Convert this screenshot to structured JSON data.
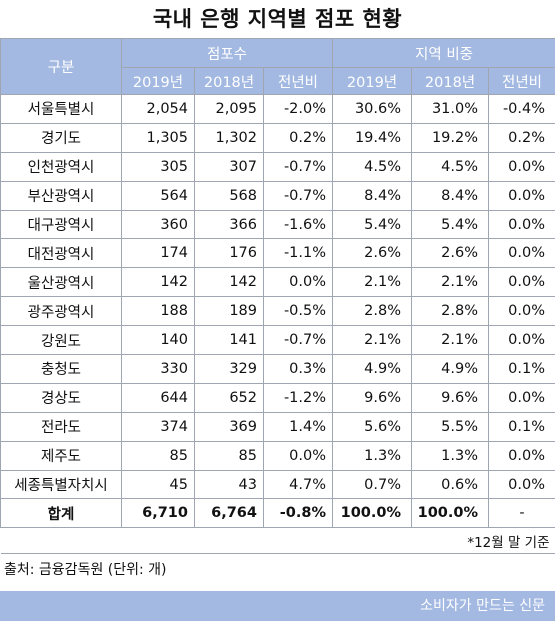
{
  "title": "국내 은행 지역별 점포 현황",
  "header": {
    "category": "구분",
    "group_branches": "점포수",
    "group_share": "지역 비중",
    "y2019": "2019년",
    "y2018": "2018년",
    "yoy": "전년비"
  },
  "rows": [
    {
      "region": "서울특별시",
      "b2019": "2,054",
      "b2018": "2,095",
      "b_yoy": "-2.0%",
      "s2019": "30.6%",
      "s2018": "31.0%",
      "s_yoy": "-0.4%"
    },
    {
      "region": "경기도",
      "b2019": "1,305",
      "b2018": "1,302",
      "b_yoy": "0.2%",
      "s2019": "19.4%",
      "s2018": "19.2%",
      "s_yoy": "0.2%"
    },
    {
      "region": "인천광역시",
      "b2019": "305",
      "b2018": "307",
      "b_yoy": "-0.7%",
      "s2019": "4.5%",
      "s2018": "4.5%",
      "s_yoy": "0.0%"
    },
    {
      "region": "부산광역시",
      "b2019": "564",
      "b2018": "568",
      "b_yoy": "-0.7%",
      "s2019": "8.4%",
      "s2018": "8.4%",
      "s_yoy": "0.0%"
    },
    {
      "region": "대구광역시",
      "b2019": "360",
      "b2018": "366",
      "b_yoy": "-1.6%",
      "s2019": "5.4%",
      "s2018": "5.4%",
      "s_yoy": "0.0%"
    },
    {
      "region": "대전광역시",
      "b2019": "174",
      "b2018": "176",
      "b_yoy": "-1.1%",
      "s2019": "2.6%",
      "s2018": "2.6%",
      "s_yoy": "0.0%"
    },
    {
      "region": "울산광역시",
      "b2019": "142",
      "b2018": "142",
      "b_yoy": "0.0%",
      "s2019": "2.1%",
      "s2018": "2.1%",
      "s_yoy": "0.0%"
    },
    {
      "region": "광주광역시",
      "b2019": "188",
      "b2018": "189",
      "b_yoy": "-0.5%",
      "s2019": "2.8%",
      "s2018": "2.8%",
      "s_yoy": "0.0%"
    },
    {
      "region": "강원도",
      "b2019": "140",
      "b2018": "141",
      "b_yoy": "-0.7%",
      "s2019": "2.1%",
      "s2018": "2.1%",
      "s_yoy": "0.0%"
    },
    {
      "region": "충청도",
      "b2019": "330",
      "b2018": "329",
      "b_yoy": "0.3%",
      "s2019": "4.9%",
      "s2018": "4.9%",
      "s_yoy": "0.1%"
    },
    {
      "region": "경상도",
      "b2019": "644",
      "b2018": "652",
      "b_yoy": "-1.2%",
      "s2019": "9.6%",
      "s2018": "9.6%",
      "s_yoy": "0.0%"
    },
    {
      "region": "전라도",
      "b2019": "374",
      "b2018": "369",
      "b_yoy": "1.4%",
      "s2019": "5.6%",
      "s2018": "5.5%",
      "s_yoy": "0.1%"
    },
    {
      "region": "제주도",
      "b2019": "85",
      "b2018": "85",
      "b_yoy": "0.0%",
      "s2019": "1.3%",
      "s2018": "1.3%",
      "s_yoy": "0.0%"
    },
    {
      "region": "세종특별자치시",
      "b2019": "45",
      "b2018": "43",
      "b_yoy": "4.7%",
      "s2019": "0.7%",
      "s2018": "0.6%",
      "s_yoy": "0.0%"
    }
  ],
  "total": {
    "region": "합계",
    "b2019": "6,710",
    "b2018": "6,764",
    "b_yoy": "-0.8%",
    "s2019": "100.0%",
    "s2018": "100.0%",
    "s_yoy": "-"
  },
  "note": "*12월 말 기준",
  "source": "출처: 금융감독원 (단위: 개)",
  "footer": "소비자가 만드는 신문",
  "colors": {
    "header_bg": "#a3b9e2",
    "header_text": "#ffffff",
    "border": "#9fa6b2"
  }
}
